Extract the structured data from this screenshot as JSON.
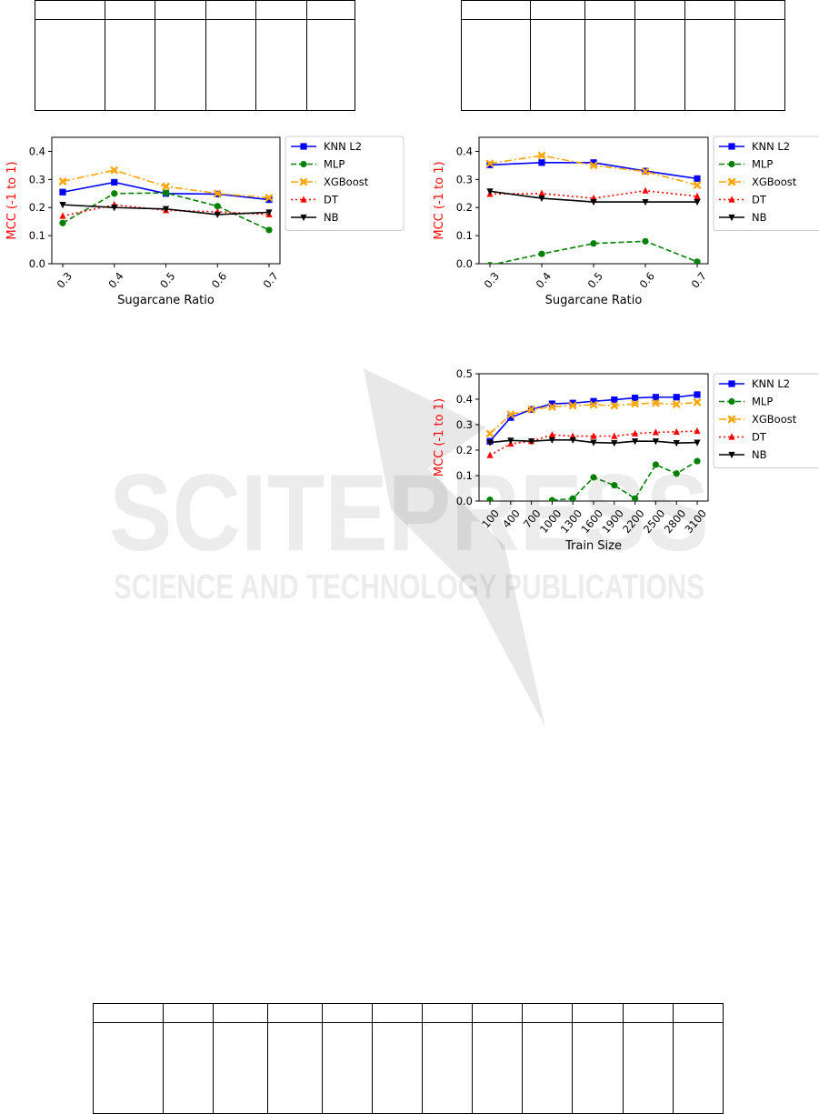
{
  "chart_data": [
    {
      "type": "line",
      "xlabel": "Sugarcane Ratio",
      "ylabel": "MCC (-1 to 1)",
      "x": [
        "0.3",
        "0.4",
        "0.5",
        "0.6",
        "0.7"
      ],
      "ylim": [
        0.0,
        0.45
      ],
      "yticks": [
        "0.0",
        "0.1",
        "0.2",
        "0.3",
        "0.4"
      ],
      "legend": "right",
      "series": [
        {
          "name": "KNN L2",
          "color": "#0000ff",
          "marker": "square",
          "dash": "solid",
          "values": [
            0.255,
            0.29,
            0.25,
            0.248,
            0.228
          ]
        },
        {
          "name": "MLP",
          "color": "#008000",
          "marker": "circle",
          "dash": "dashed",
          "values": [
            0.145,
            0.25,
            0.252,
            0.205,
            0.12
          ]
        },
        {
          "name": "XGBoost",
          "color": "#ffa500",
          "marker": "x",
          "dash": "dashdot",
          "values": [
            0.293,
            0.333,
            0.275,
            0.25,
            0.235
          ]
        },
        {
          "name": "DT",
          "color": "#ff0000",
          "marker": "triangle-up",
          "dash": "dotted",
          "values": [
            0.17,
            0.21,
            0.19,
            0.185,
            0.175
          ]
        },
        {
          "name": "NB",
          "color": "#000000",
          "marker": "triangle-down",
          "dash": "solid",
          "values": [
            0.21,
            0.2,
            0.195,
            0.175,
            0.183
          ]
        }
      ]
    },
    {
      "type": "line",
      "xlabel": "Sugarcane Ratio",
      "ylabel": "MCC (-1 to 1)",
      "x": [
        "0.3",
        "0.4",
        "0.5",
        "0.6",
        "0.7"
      ],
      "ylim": [
        0.0,
        0.45
      ],
      "yticks": [
        "0.0",
        "0.1",
        "0.2",
        "0.3",
        "0.4"
      ],
      "legend": "right",
      "series": [
        {
          "name": "KNN L2",
          "color": "#0000ff",
          "marker": "square",
          "dash": "solid",
          "values": [
            0.352,
            0.36,
            0.36,
            0.33,
            0.303
          ]
        },
        {
          "name": "MLP",
          "color": "#008000",
          "marker": "circle",
          "dash": "dashed",
          "values": [
            -0.005,
            0.035,
            0.072,
            0.08,
            0.007
          ]
        },
        {
          "name": "XGBoost",
          "color": "#ffa500",
          "marker": "x",
          "dash": "dashdot",
          "values": [
            0.357,
            0.385,
            0.35,
            0.328,
            0.28
          ]
        },
        {
          "name": "DT",
          "color": "#ff0000",
          "marker": "triangle-up",
          "dash": "dotted",
          "values": [
            0.248,
            0.25,
            0.233,
            0.26,
            0.24
          ]
        },
        {
          "name": "NB",
          "color": "#000000",
          "marker": "triangle-down",
          "dash": "solid",
          "values": [
            0.258,
            0.233,
            0.22,
            0.22,
            0.22
          ]
        }
      ]
    },
    {
      "type": "line",
      "xlabel": "Train Size",
      "ylabel": "MCC (-1 to 1)",
      "x": [
        "100",
        "400",
        "700",
        "1000",
        "1300",
        "1600",
        "1900",
        "2200",
        "2500",
        "2800",
        "3100"
      ],
      "ylim": [
        0.0,
        0.5
      ],
      "yticks": [
        "0.0",
        "0.1",
        "0.2",
        "0.3",
        "0.4",
        "0.5"
      ],
      "legend": "right",
      "series": [
        {
          "name": "KNN L2",
          "color": "#0000ff",
          "marker": "square",
          "dash": "solid",
          "values": [
            0.235,
            0.328,
            0.36,
            0.382,
            0.385,
            0.392,
            0.398,
            0.405,
            0.408,
            0.408,
            0.418
          ]
        },
        {
          "name": "MLP",
          "color": "#008000",
          "marker": "circle",
          "dash": "dashed",
          "values": [
            0.005,
            null,
            null,
            0.003,
            0.01,
            0.093,
            0.062,
            0.01,
            0.143,
            0.108,
            0.157
          ]
        },
        {
          "name": "XGBoost",
          "color": "#ffa500",
          "marker": "x",
          "dash": "dashdot",
          "values": [
            0.265,
            0.34,
            0.36,
            0.37,
            0.375,
            0.378,
            0.375,
            0.382,
            0.385,
            0.38,
            0.388
          ]
        },
        {
          "name": "DT",
          "color": "#ff0000",
          "marker": "triangle-up",
          "dash": "dotted",
          "values": [
            0.18,
            0.225,
            0.235,
            0.26,
            0.255,
            0.255,
            0.255,
            0.265,
            0.27,
            0.272,
            0.275
          ]
        },
        {
          "name": "NB",
          "color": "#000000",
          "marker": "triangle-down",
          "dash": "solid",
          "values": [
            0.23,
            0.238,
            0.235,
            0.24,
            0.24,
            0.23,
            0.228,
            0.235,
            0.235,
            0.228,
            0.23
          ]
        }
      ]
    }
  ],
  "watermark": {
    "logo": "SCITEPRESS",
    "tagline": "SCIENCE AND TECHNOLOGY PUBLICATIONS"
  }
}
